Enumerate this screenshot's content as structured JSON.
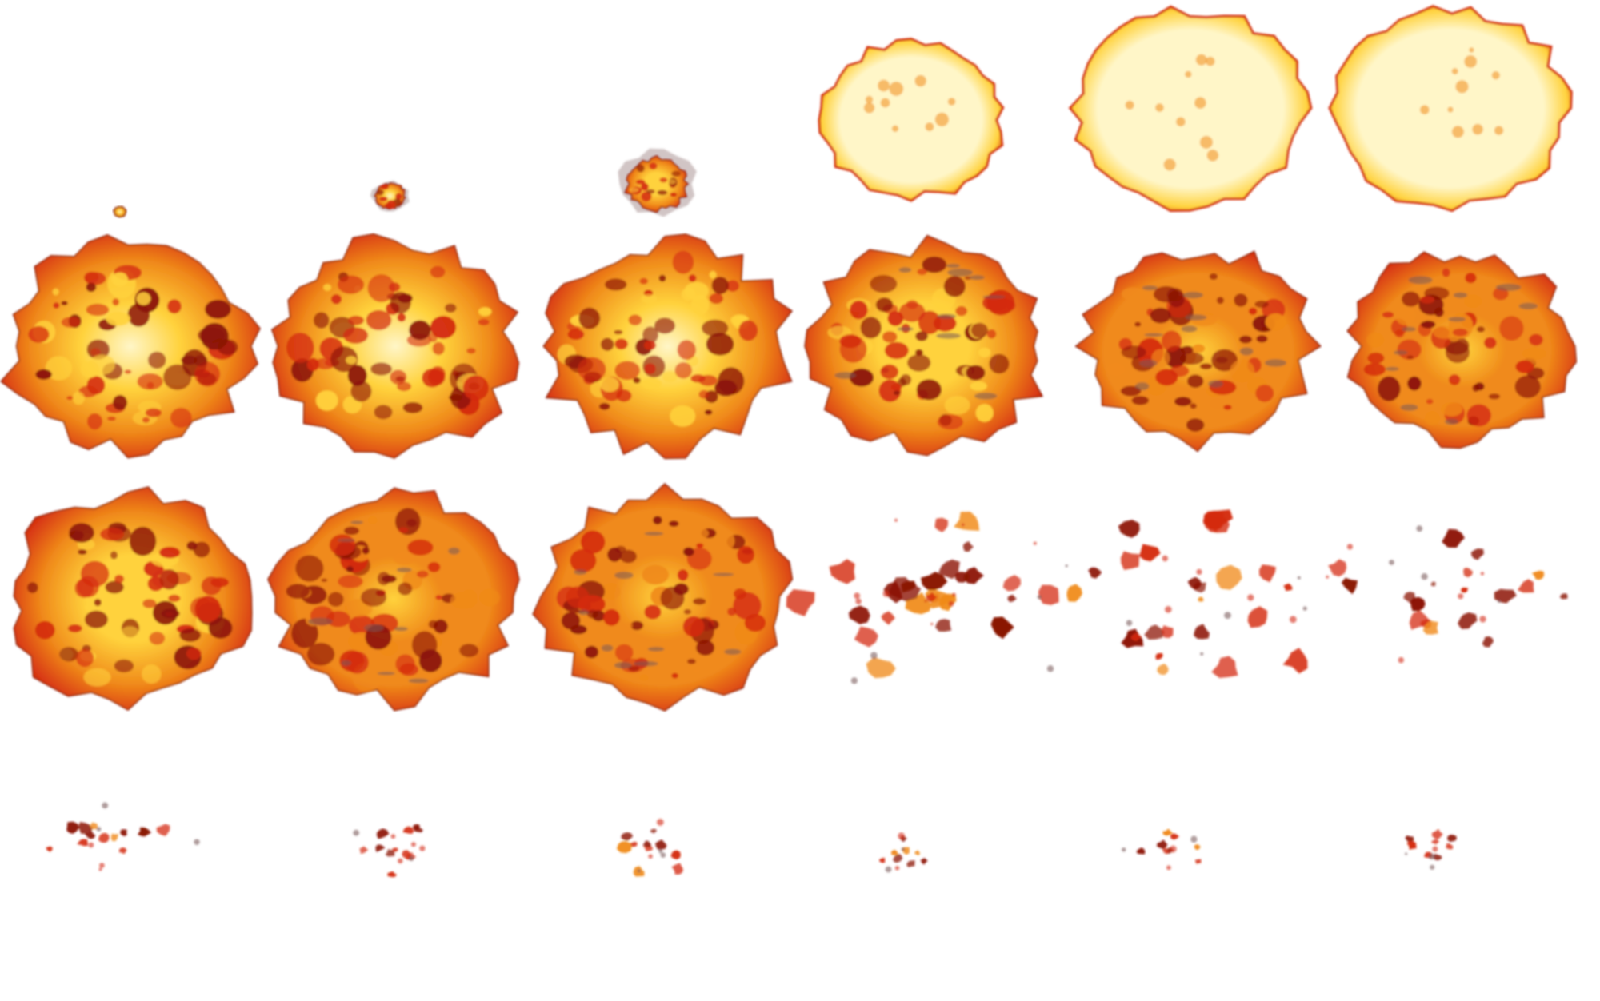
{
  "sprite_sheet": {
    "background": "#ffffff",
    "palette": {
      "white_hot": "#fff6c8",
      "yellow": "#ffd23c",
      "orange": "#f08a1a",
      "red": "#d42a10",
      "dark_red": "#8a1206",
      "smoke": "#7a5a5a"
    },
    "frames": [
      {
        "stage": "spark",
        "intensity": 1.0,
        "size": 0.05,
        "density": 1.0
      },
      {
        "stage": "ignite",
        "intensity": 0.8,
        "size": 0.12,
        "density": 1.0
      },
      {
        "stage": "ignite",
        "intensity": 0.7,
        "size": 0.25,
        "density": 1.0
      },
      {
        "stage": "flash",
        "intensity": 1.0,
        "size": 0.75,
        "density": 1.0
      },
      {
        "stage": "flash",
        "intensity": 1.0,
        "size": 0.95,
        "density": 1.0
      },
      {
        "stage": "flash",
        "intensity": 1.0,
        "size": 0.95,
        "density": 1.0
      },
      {
        "stage": "fireball",
        "intensity": 0.95,
        "size": 1.0,
        "density": 1.0
      },
      {
        "stage": "fireball",
        "intensity": 0.85,
        "size": 1.0,
        "density": 1.0
      },
      {
        "stage": "fireball",
        "intensity": 0.75,
        "size": 1.0,
        "density": 1.0
      },
      {
        "stage": "fireball",
        "intensity": 0.55,
        "size": 0.97,
        "density": 0.98
      },
      {
        "stage": "fireball",
        "intensity": 0.45,
        "size": 0.93,
        "density": 0.95
      },
      {
        "stage": "fireball",
        "intensity": 0.4,
        "size": 0.9,
        "density": 0.93
      },
      {
        "stage": "burn",
        "intensity": 0.6,
        "size": 1.0,
        "density": 0.98
      },
      {
        "stage": "burn",
        "intensity": 0.5,
        "size": 1.0,
        "density": 0.96
      },
      {
        "stage": "burn",
        "intensity": 0.45,
        "size": 1.0,
        "density": 0.94
      },
      {
        "stage": "smolder",
        "intensity": 0.3,
        "size": 0.85,
        "density": 0.8
      },
      {
        "stage": "smolder",
        "intensity": 0.28,
        "size": 0.8,
        "density": 0.75
      },
      {
        "stage": "dissipate",
        "intensity": 0.35,
        "size": 0.6,
        "density": 0.45
      },
      {
        "stage": "embers",
        "intensity": 0.3,
        "size": 0.35,
        "density": 0.3
      },
      {
        "stage": "embers",
        "intensity": 0.3,
        "size": 0.3,
        "density": 0.25
      },
      {
        "stage": "embers",
        "intensity": 0.3,
        "size": 0.28,
        "density": 0.22
      },
      {
        "stage": "embers",
        "intensity": 0.25,
        "size": 0.18,
        "density": 0.15
      },
      {
        "stage": "embers",
        "intensity": 0.25,
        "size": 0.18,
        "density": 0.15
      },
      {
        "stage": "embers",
        "intensity": 0.2,
        "size": 0.18,
        "density": 0.14
      }
    ]
  }
}
